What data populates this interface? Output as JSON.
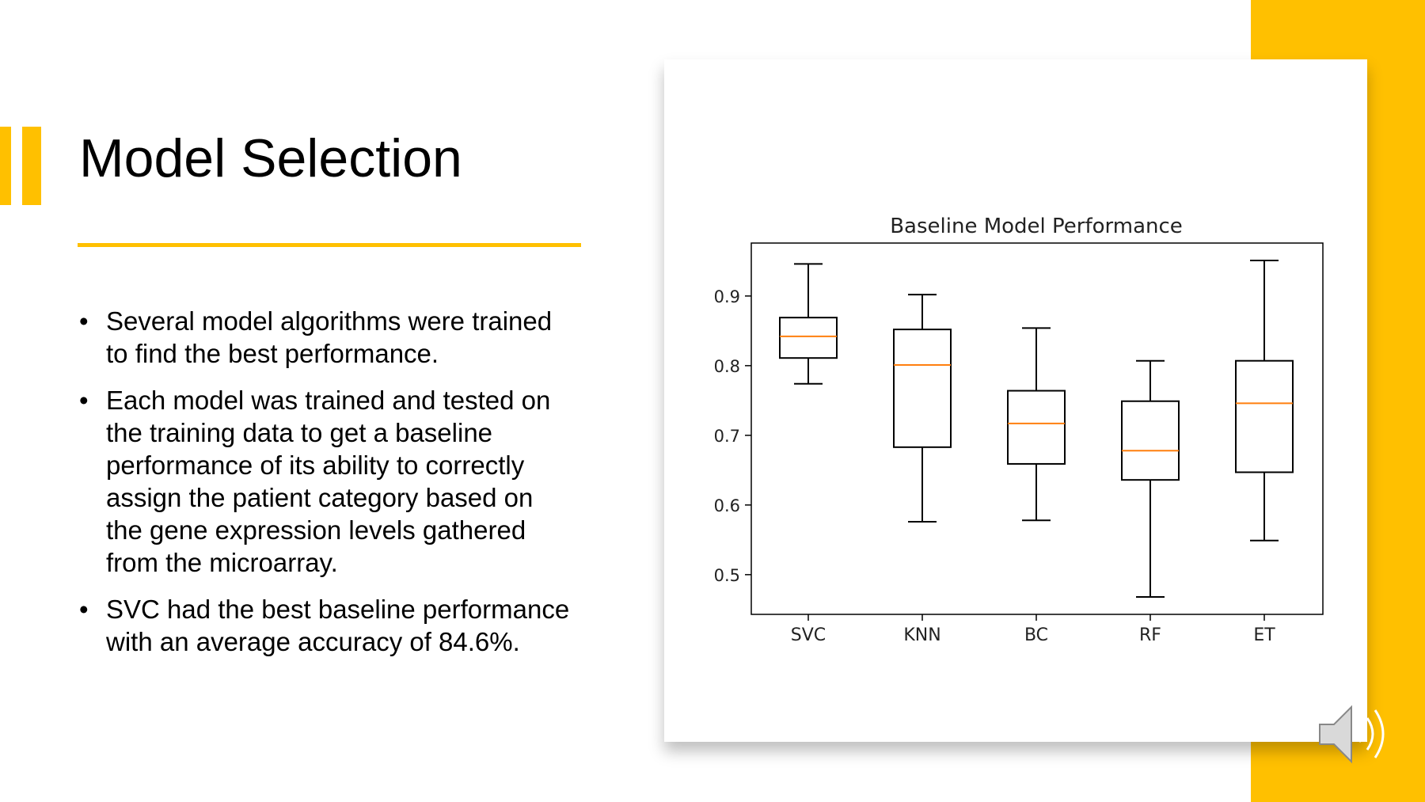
{
  "slide": {
    "title": "Model Selection",
    "bullets": [
      {
        "lines": [
          "Several model algorithms were trained",
          "to find the best performance."
        ]
      },
      {
        "lines": [
          "Each model was trained and tested on",
          "the training data to get a baseline",
          "performance of its ability to correctly",
          "assign the patient category based on",
          "the gene expression levels gathered",
          "from the microarray."
        ]
      },
      {
        "lines": [
          "SVC had the best baseline performance",
          "with an average accuracy of 84.6%."
        ]
      }
    ],
    "bullet_symbol": "•"
  },
  "colors": {
    "accent": "#FFC000",
    "median": "#FF7F0E"
  },
  "icons": {
    "audio": "speaker-icon"
  },
  "chart_data": {
    "type": "boxplot",
    "title": "Baseline Model Performance",
    "xlabel": "",
    "ylabel": "",
    "categories": [
      "SVC",
      "KNN",
      "BC",
      "RF",
      "ET"
    ],
    "series": [
      {
        "whisker_low": 0.774,
        "q1": 0.811,
        "median": 0.842,
        "q3": 0.869,
        "whisker_high": 0.946
      },
      {
        "whisker_low": 0.576,
        "q1": 0.683,
        "median": 0.801,
        "q3": 0.852,
        "whisker_high": 0.902
      },
      {
        "whisker_low": 0.578,
        "q1": 0.659,
        "median": 0.717,
        "q3": 0.764,
        "whisker_high": 0.854
      },
      {
        "whisker_low": 0.468,
        "q1": 0.636,
        "median": 0.678,
        "q3": 0.749,
        "whisker_high": 0.807
      },
      {
        "whisker_low": 0.549,
        "q1": 0.647,
        "median": 0.746,
        "q3": 0.807,
        "whisker_high": 0.951
      }
    ],
    "yticks": [
      0.5,
      0.6,
      0.7,
      0.8,
      0.9
    ],
    "ytick_labels": [
      "0.5",
      "0.6",
      "0.7",
      "0.8",
      "0.9"
    ],
    "ylim": [
      0.443,
      0.976
    ],
    "grid": false
  }
}
